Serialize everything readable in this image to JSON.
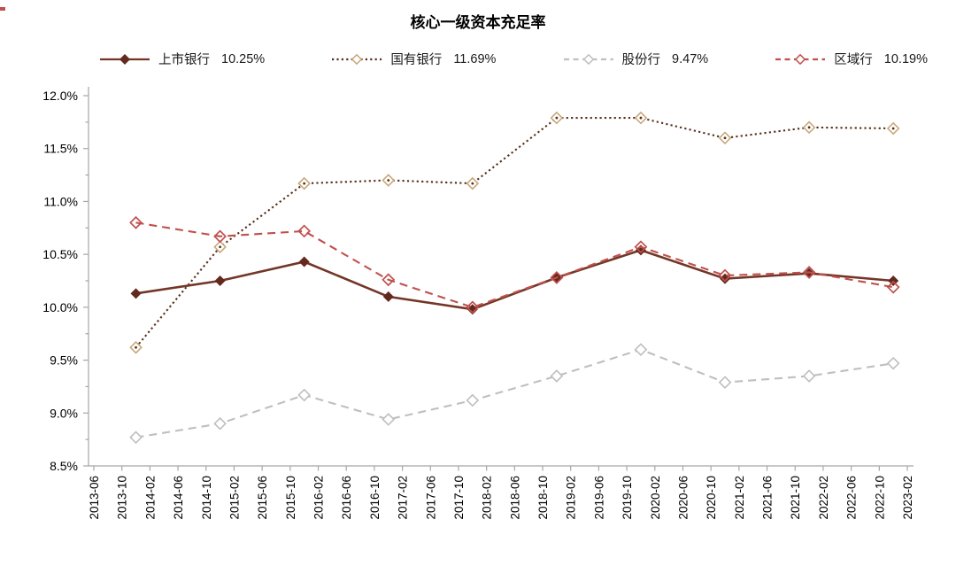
{
  "chart": {
    "title_note": ""
  },
  "chart_data": {
    "type": "line",
    "title": "核心一级资本充足率",
    "legend_position": "top",
    "unit": "%",
    "ylim": [
      8.5,
      12.0
    ],
    "y_major_step": 0.5,
    "y_minor_step": 0.25,
    "y_tick_labels": [
      "12.0%",
      "11.5%",
      "11.0%",
      "10.5%",
      "10.0%",
      "9.5%",
      "9.0%",
      "8.5%"
    ],
    "x_tick_labels": [
      "2013-06",
      "2013-10",
      "2014-02",
      "2014-06",
      "2014-10",
      "2015-02",
      "2015-06",
      "2015-10",
      "2016-02",
      "2016-06",
      "2016-10",
      "2017-02",
      "2017-06",
      "2017-10",
      "2018-02",
      "2018-06",
      "2018-10",
      "2019-02",
      "2019-06",
      "2019-10",
      "2020-02",
      "2020-06",
      "2020-10",
      "2021-02",
      "2021-06",
      "2021-10",
      "2022-02",
      "2022-06",
      "2022-10",
      "2023-02"
    ],
    "categories": [
      "2013-12",
      "2014-12",
      "2015-12",
      "2016-12",
      "2017-12",
      "2018-12",
      "2019-12",
      "2020-12",
      "2021-12",
      "2022-12"
    ],
    "series": [
      {
        "name": "上市银行",
        "legend_value": "10.25%",
        "values": [
          10.13,
          10.25,
          10.43,
          10.1,
          9.98,
          10.28,
          10.54,
          10.27,
          10.32,
          10.25
        ],
        "color": "#733627",
        "marker_color": "#63291d",
        "line_style": "solid",
        "marker": "filled-diamond"
      },
      {
        "name": "国有银行",
        "legend_value": "11.69%",
        "values": [
          9.62,
          10.57,
          11.17,
          11.2,
          11.17,
          11.79,
          11.79,
          11.6,
          11.7,
          11.69
        ],
        "color": "#54301b",
        "marker_color": "#c9a87c",
        "line_style": "dotted",
        "marker": "open-diamond"
      },
      {
        "name": "股份行",
        "legend_value": "9.47%",
        "values": [
          8.77,
          8.9,
          9.17,
          8.94,
          9.12,
          9.35,
          9.6,
          9.29,
          9.35,
          9.47
        ],
        "color": "#bfbfbf",
        "marker_color": "#bfbfbf",
        "line_style": "dashed",
        "marker": "open-diamond"
      },
      {
        "name": "区域行",
        "legend_value": "10.19%",
        "values": [
          10.8,
          10.67,
          10.72,
          10.26,
          10.0,
          10.28,
          10.57,
          10.3,
          10.33,
          10.19
        ],
        "color": "#c0504d",
        "marker_color": "#c0504d",
        "line_style": "dashed",
        "marker": "open-diamond"
      }
    ],
    "axis_color": "#a6a6a6",
    "label_color": "#000000"
  }
}
